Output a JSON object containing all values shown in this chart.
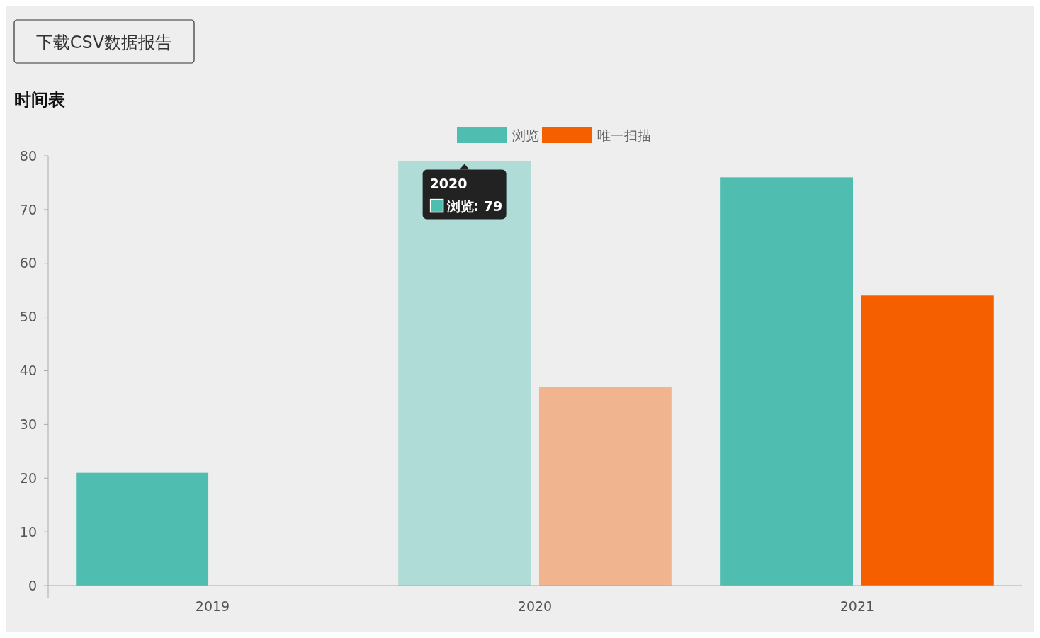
{
  "chart_data": {
    "type": "bar",
    "title": "时间表",
    "categories": [
      "2019",
      "2020",
      "2021"
    ],
    "series": [
      {
        "name": "浏览",
        "color": "#50bdb1",
        "colors": [
          "#50bdb1",
          "#b0dcd7",
          "#50bdb1"
        ],
        "values": [
          21,
          79,
          76
        ]
      },
      {
        "name": "唯一扫描",
        "color": "#f55f00",
        "colors": [
          "#f55f00",
          "#f0b48e",
          "#f55f00"
        ],
        "values": [
          0,
          37,
          54
        ]
      }
    ],
    "ylim": [
      0,
      80
    ],
    "yticks": [
      0,
      10,
      20,
      30,
      40,
      50,
      60,
      70,
      80
    ],
    "grid": false,
    "legend": "top",
    "annotations": [
      "下载CSV数据报告",
      "2020",
      "浏览: 79"
    ]
  }
}
